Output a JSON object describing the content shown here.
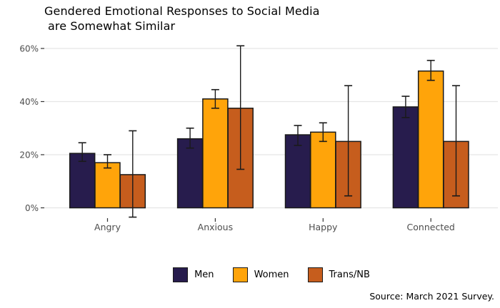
{
  "title": {
    "line1": "Gendered Emotional Responses to Social Media",
    "line2": "are Somewhat Similar"
  },
  "source": "Source: March 2021 Survey.",
  "colors": {
    "background": "#ffffff",
    "grid": "#e5e5e5",
    "axis_text": "#4d4d4d",
    "tick": "#333333",
    "bar_border": "#1a1a1a",
    "error_bar": "#1a1a1a"
  },
  "chart_data": {
    "type": "bar",
    "title": "Gendered Emotional Responses to Social Media are Somewhat Similar",
    "xlabel": "",
    "ylabel": "",
    "categories": [
      "Angry",
      "Anxious",
      "Happy",
      "Connected"
    ],
    "series": [
      {
        "name": "Men",
        "color": "#271c4d",
        "values": [
          20.5,
          26,
          27.5,
          38
        ],
        "error_low": [
          17.5,
          22.5,
          23.5,
          34
        ],
        "error_high": [
          24.5,
          30,
          31,
          42
        ]
      },
      {
        "name": "Women",
        "color": "#ffa40a",
        "values": [
          17,
          41,
          28.5,
          51.5
        ],
        "error_low": [
          15,
          37.5,
          25,
          48
        ],
        "error_high": [
          20,
          44.5,
          32,
          55.5
        ]
      },
      {
        "name": "Trans/NB",
        "color": "#c65d1d",
        "values": [
          12.5,
          37.5,
          25,
          25
        ],
        "error_low": [
          -3.5,
          14.5,
          4.5,
          4.5
        ],
        "error_high": [
          29,
          61,
          46,
          46
        ]
      }
    ],
    "y_ticks": [
      0,
      20,
      40,
      60
    ],
    "y_tick_labels": [
      "0%",
      "20%",
      "40%",
      "60%"
    ],
    "ylim": [
      -6,
      63
    ],
    "grid": "horizontal-major-only",
    "legend_position": "bottom",
    "error_bars": true
  }
}
